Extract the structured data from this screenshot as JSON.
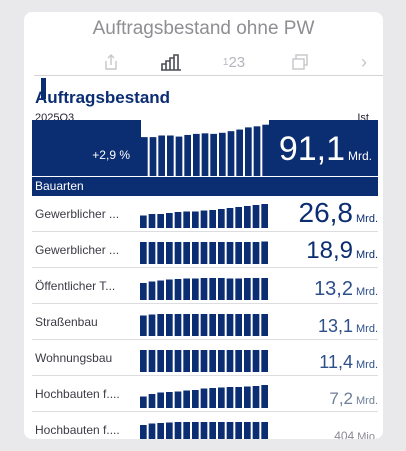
{
  "widget": {
    "title": "Auftragsbestand ohne PW"
  },
  "toolbar": {
    "share_icon": "share-icon",
    "bars_icon": "bar-chart-icon",
    "numbers_label_small": "1",
    "numbers_label": "23",
    "window_icon": "windows-icon",
    "next_label": "›"
  },
  "section": {
    "title": "Auftragsbestand",
    "period": "2025Q3",
    "status": "Ist",
    "change": "+2,9 %",
    "value": "91,1",
    "unit": "Mrd."
  },
  "categories_header": "Bauarten",
  "rows": [
    {
      "label": "Gewerblicher ...",
      "value": "26,8",
      "unit": "Mrd."
    },
    {
      "label": "Gewerblicher ...",
      "value": "18,9",
      "unit": "Mrd."
    },
    {
      "label": "Öffentlicher T...",
      "value": "13,2",
      "unit": "Mrd."
    },
    {
      "label": "Straßenbau",
      "value": "13,1",
      "unit": "Mrd."
    },
    {
      "label": "Wohnungsbau",
      "value": "11,4",
      "unit": "Mrd."
    },
    {
      "label": "Hochbauten f....",
      "value": "7,2",
      "unit": "Mrd."
    },
    {
      "label": "Hochbauten f....",
      "value": "404",
      "unit": "Mio."
    }
  ],
  "chart_data": [
    {
      "type": "bar",
      "name": "Auftragsbestand",
      "values": [
        0.72,
        0.72,
        0.75,
        0.75,
        0.73,
        0.76,
        0.78,
        0.79,
        0.78,
        0.8,
        0.83,
        0.86,
        0.9,
        0.92,
        0.95
      ]
    },
    {
      "type": "bar",
      "values": [
        0.5,
        0.56,
        0.56,
        0.6,
        0.64,
        0.66,
        0.66,
        0.7,
        0.72,
        0.76,
        0.8,
        0.84,
        0.88,
        0.92,
        0.96
      ]
    },
    {
      "type": "bar",
      "values": [
        0.88,
        0.88,
        0.88,
        0.88,
        0.88,
        0.88,
        0.88,
        0.88,
        0.88,
        0.88,
        0.88,
        0.88,
        0.88,
        0.88,
        0.9
      ]
    },
    {
      "type": "bar",
      "values": [
        0.68,
        0.74,
        0.78,
        0.82,
        0.84,
        0.86,
        0.86,
        0.88,
        0.88,
        0.88,
        0.86,
        0.86,
        0.88,
        0.88,
        0.88
      ]
    },
    {
      "type": "bar",
      "values": [
        0.82,
        0.86,
        0.88,
        0.88,
        0.88,
        0.88,
        0.88,
        0.88,
        0.88,
        0.88,
        0.88,
        0.88,
        0.88,
        0.88,
        0.88
      ]
    },
    {
      "type": "bar",
      "values": [
        0.88,
        0.88,
        0.88,
        0.88,
        0.88,
        0.88,
        0.88,
        0.88,
        0.88,
        0.88,
        0.88,
        0.88,
        0.88,
        0.88,
        0.88
      ]
    },
    {
      "type": "bar",
      "values": [
        0.46,
        0.56,
        0.62,
        0.64,
        0.66,
        0.7,
        0.72,
        0.78,
        0.8,
        0.82,
        0.84,
        0.84,
        0.86,
        0.88,
        0.92
      ]
    },
    {
      "type": "bar",
      "values": [
        0.76,
        0.82,
        0.84,
        0.86,
        0.88,
        0.88,
        0.88,
        0.88,
        0.88,
        0.88,
        0.88,
        0.88,
        0.88,
        0.88,
        0.88
      ]
    }
  ],
  "colors": {
    "primary": "#0b2d72",
    "value_text": "#2d4f8a",
    "muted_value": "#6f7f99",
    "faint_value": "#8a8a93"
  }
}
